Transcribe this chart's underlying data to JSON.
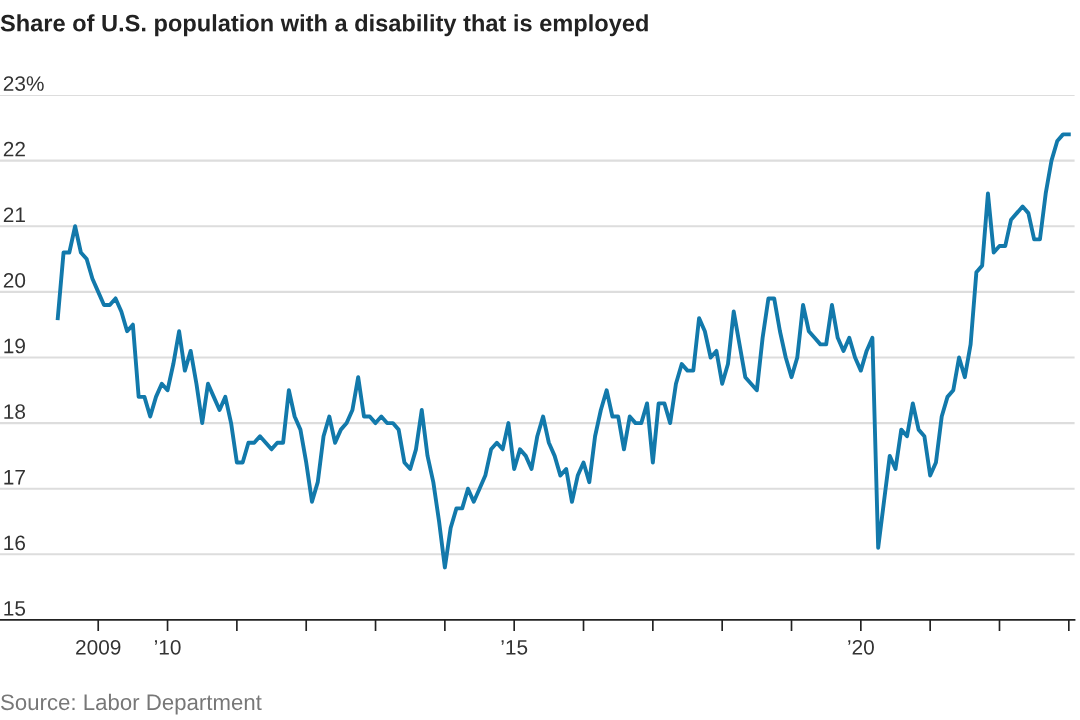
{
  "chart_data": {
    "type": "line",
    "title": "Share of U.S. population with a disability that is employed",
    "annotations": [
      "Source: Labor Department"
    ],
    "x": [
      "2008-06",
      "2008-07",
      "2008-08",
      "2008-09",
      "2008-10",
      "2008-11",
      "2008-12",
      "2009-01",
      "2009-02",
      "2009-03",
      "2009-04",
      "2009-05",
      "2009-06",
      "2009-07",
      "2009-08",
      "2009-09",
      "2009-10",
      "2009-11",
      "2009-12",
      "2010-01",
      "2010-02",
      "2010-03",
      "2010-04",
      "2010-05",
      "2010-06",
      "2010-07",
      "2010-08",
      "2010-09",
      "2010-10",
      "2010-11",
      "2010-12",
      "2011-01",
      "2011-02",
      "2011-03",
      "2011-04",
      "2011-05",
      "2011-06",
      "2011-07",
      "2011-08",
      "2011-09",
      "2011-10",
      "2011-11",
      "2011-12",
      "2012-01",
      "2012-02",
      "2012-03",
      "2012-04",
      "2012-05",
      "2012-06",
      "2012-07",
      "2012-08",
      "2012-09",
      "2012-10",
      "2012-11",
      "2012-12",
      "2013-01",
      "2013-02",
      "2013-03",
      "2013-04",
      "2013-05",
      "2013-06",
      "2013-07",
      "2013-08",
      "2013-09",
      "2013-10",
      "2013-11",
      "2013-12",
      "2014-01",
      "2014-02",
      "2014-03",
      "2014-04",
      "2014-05",
      "2014-06",
      "2014-07",
      "2014-08",
      "2014-09",
      "2014-10",
      "2014-11",
      "2014-12",
      "2015-01",
      "2015-02",
      "2015-03",
      "2015-04",
      "2015-05",
      "2015-06",
      "2015-07",
      "2015-08",
      "2015-09",
      "2015-10",
      "2015-11",
      "2015-12",
      "2016-01",
      "2016-02",
      "2016-03",
      "2016-04",
      "2016-05",
      "2016-06",
      "2016-07",
      "2016-08",
      "2016-09",
      "2016-10",
      "2016-11",
      "2016-12",
      "2017-01",
      "2017-02",
      "2017-03",
      "2017-04",
      "2017-05",
      "2017-06",
      "2017-07",
      "2017-08",
      "2017-09",
      "2017-10",
      "2017-11",
      "2017-12",
      "2018-01",
      "2018-02",
      "2018-03",
      "2018-04",
      "2018-05",
      "2018-06",
      "2018-07",
      "2018-08",
      "2018-09",
      "2018-10",
      "2018-11",
      "2018-12",
      "2019-01",
      "2019-02",
      "2019-03",
      "2019-04",
      "2019-05",
      "2019-06",
      "2019-07",
      "2019-08",
      "2019-09",
      "2019-10",
      "2019-11",
      "2019-12",
      "2020-01",
      "2020-02",
      "2020-03",
      "2020-04",
      "2020-05",
      "2020-06",
      "2020-07",
      "2020-08",
      "2020-09",
      "2020-10",
      "2020-11",
      "2020-12",
      "2021-01",
      "2021-02",
      "2021-03",
      "2021-04",
      "2021-05",
      "2021-06",
      "2021-07",
      "2021-08",
      "2021-09",
      "2021-10",
      "2021-11",
      "2021-12",
      "2022-01",
      "2022-02",
      "2022-03",
      "2022-04",
      "2022-05",
      "2022-06",
      "2022-07",
      "2022-08",
      "2022-09",
      "2022-10",
      "2022-11",
      "2022-12",
      "2023-01"
    ],
    "series": [
      {
        "color": "#1279ab",
        "values": [
          19.6,
          20.6,
          20.6,
          21.0,
          20.6,
          20.5,
          20.2,
          20.0,
          19.8,
          19.8,
          19.9,
          19.7,
          19.4,
          19.5,
          18.4,
          18.4,
          18.1,
          18.4,
          18.6,
          18.5,
          18.9,
          19.4,
          18.8,
          19.1,
          18.6,
          18.0,
          18.6,
          18.4,
          18.2,
          18.4,
          18.0,
          17.4,
          17.4,
          17.7,
          17.7,
          17.8,
          17.7,
          17.6,
          17.7,
          17.7,
          18.5,
          18.1,
          17.9,
          17.4,
          16.8,
          17.1,
          17.8,
          18.1,
          17.7,
          17.9,
          18.0,
          18.2,
          18.7,
          18.1,
          18.1,
          18.0,
          18.1,
          18.0,
          18.0,
          17.9,
          17.4,
          17.3,
          17.6,
          18.2,
          17.5,
          17.1,
          16.5,
          15.8,
          16.4,
          16.7,
          16.7,
          17.0,
          16.8,
          17.0,
          17.2,
          17.6,
          17.7,
          17.6,
          18.0,
          17.3,
          17.6,
          17.5,
          17.3,
          17.8,
          18.1,
          17.7,
          17.5,
          17.2,
          17.3,
          16.8,
          17.2,
          17.4,
          17.1,
          17.8,
          18.2,
          18.5,
          18.1,
          18.1,
          17.6,
          18.1,
          18.0,
          18.0,
          18.3,
          17.4,
          18.3,
          18.3,
          18.0,
          18.6,
          18.9,
          18.8,
          18.8,
          19.6,
          19.4,
          19.0,
          19.1,
          18.6,
          18.9,
          19.7,
          19.2,
          18.7,
          18.6,
          18.5,
          19.3,
          19.9,
          19.9,
          19.4,
          19.0,
          18.7,
          19.0,
          19.8,
          19.4,
          19.3,
          19.2,
          19.2,
          19.8,
          19.3,
          19.1,
          19.3,
          19.0,
          18.8,
          19.1,
          19.3,
          16.1,
          16.8,
          17.5,
          17.3,
          17.9,
          17.8,
          18.3,
          17.9,
          17.8,
          17.2,
          17.4,
          18.1,
          18.4,
          18.5,
          19.0,
          18.7,
          19.2,
          20.3,
          20.4,
          21.5,
          20.6,
          20.7,
          20.7,
          21.1,
          21.2,
          21.3,
          21.2,
          20.8,
          20.8,
          21.5,
          22.0,
          22.3,
          22.4,
          22.4
        ]
      }
    ],
    "xlim": [
      "2007-08",
      "2023-02"
    ],
    "xticks": [
      {
        "value": "2009-01",
        "label": "2009"
      },
      {
        "value": "2010-01",
        "label": "’10"
      },
      {
        "value": "2011-01",
        "label": null
      },
      {
        "value": "2012-01",
        "label": null
      },
      {
        "value": "2013-01",
        "label": null
      },
      {
        "value": "2014-01",
        "label": null
      },
      {
        "value": "2015-01",
        "label": "’15"
      },
      {
        "value": "2016-01",
        "label": null
      },
      {
        "value": "2017-01",
        "label": null
      },
      {
        "value": "2018-01",
        "label": null
      },
      {
        "value": "2019-01",
        "label": null
      },
      {
        "value": "2020-01",
        "label": "’20"
      },
      {
        "value": "2021-01",
        "label": null
      },
      {
        "value": "2022-01",
        "label": null
      },
      {
        "value": "2023-01",
        "label": null
      }
    ],
    "ylim": [
      15,
      23
    ],
    "yticks": [
      15,
      16,
      17,
      18,
      19,
      20,
      21,
      22,
      {
        "value": 23,
        "label": "23%"
      }
    ],
    "grid": "y",
    "legend": false,
    "marker": "none",
    "line_style": "solid"
  }
}
